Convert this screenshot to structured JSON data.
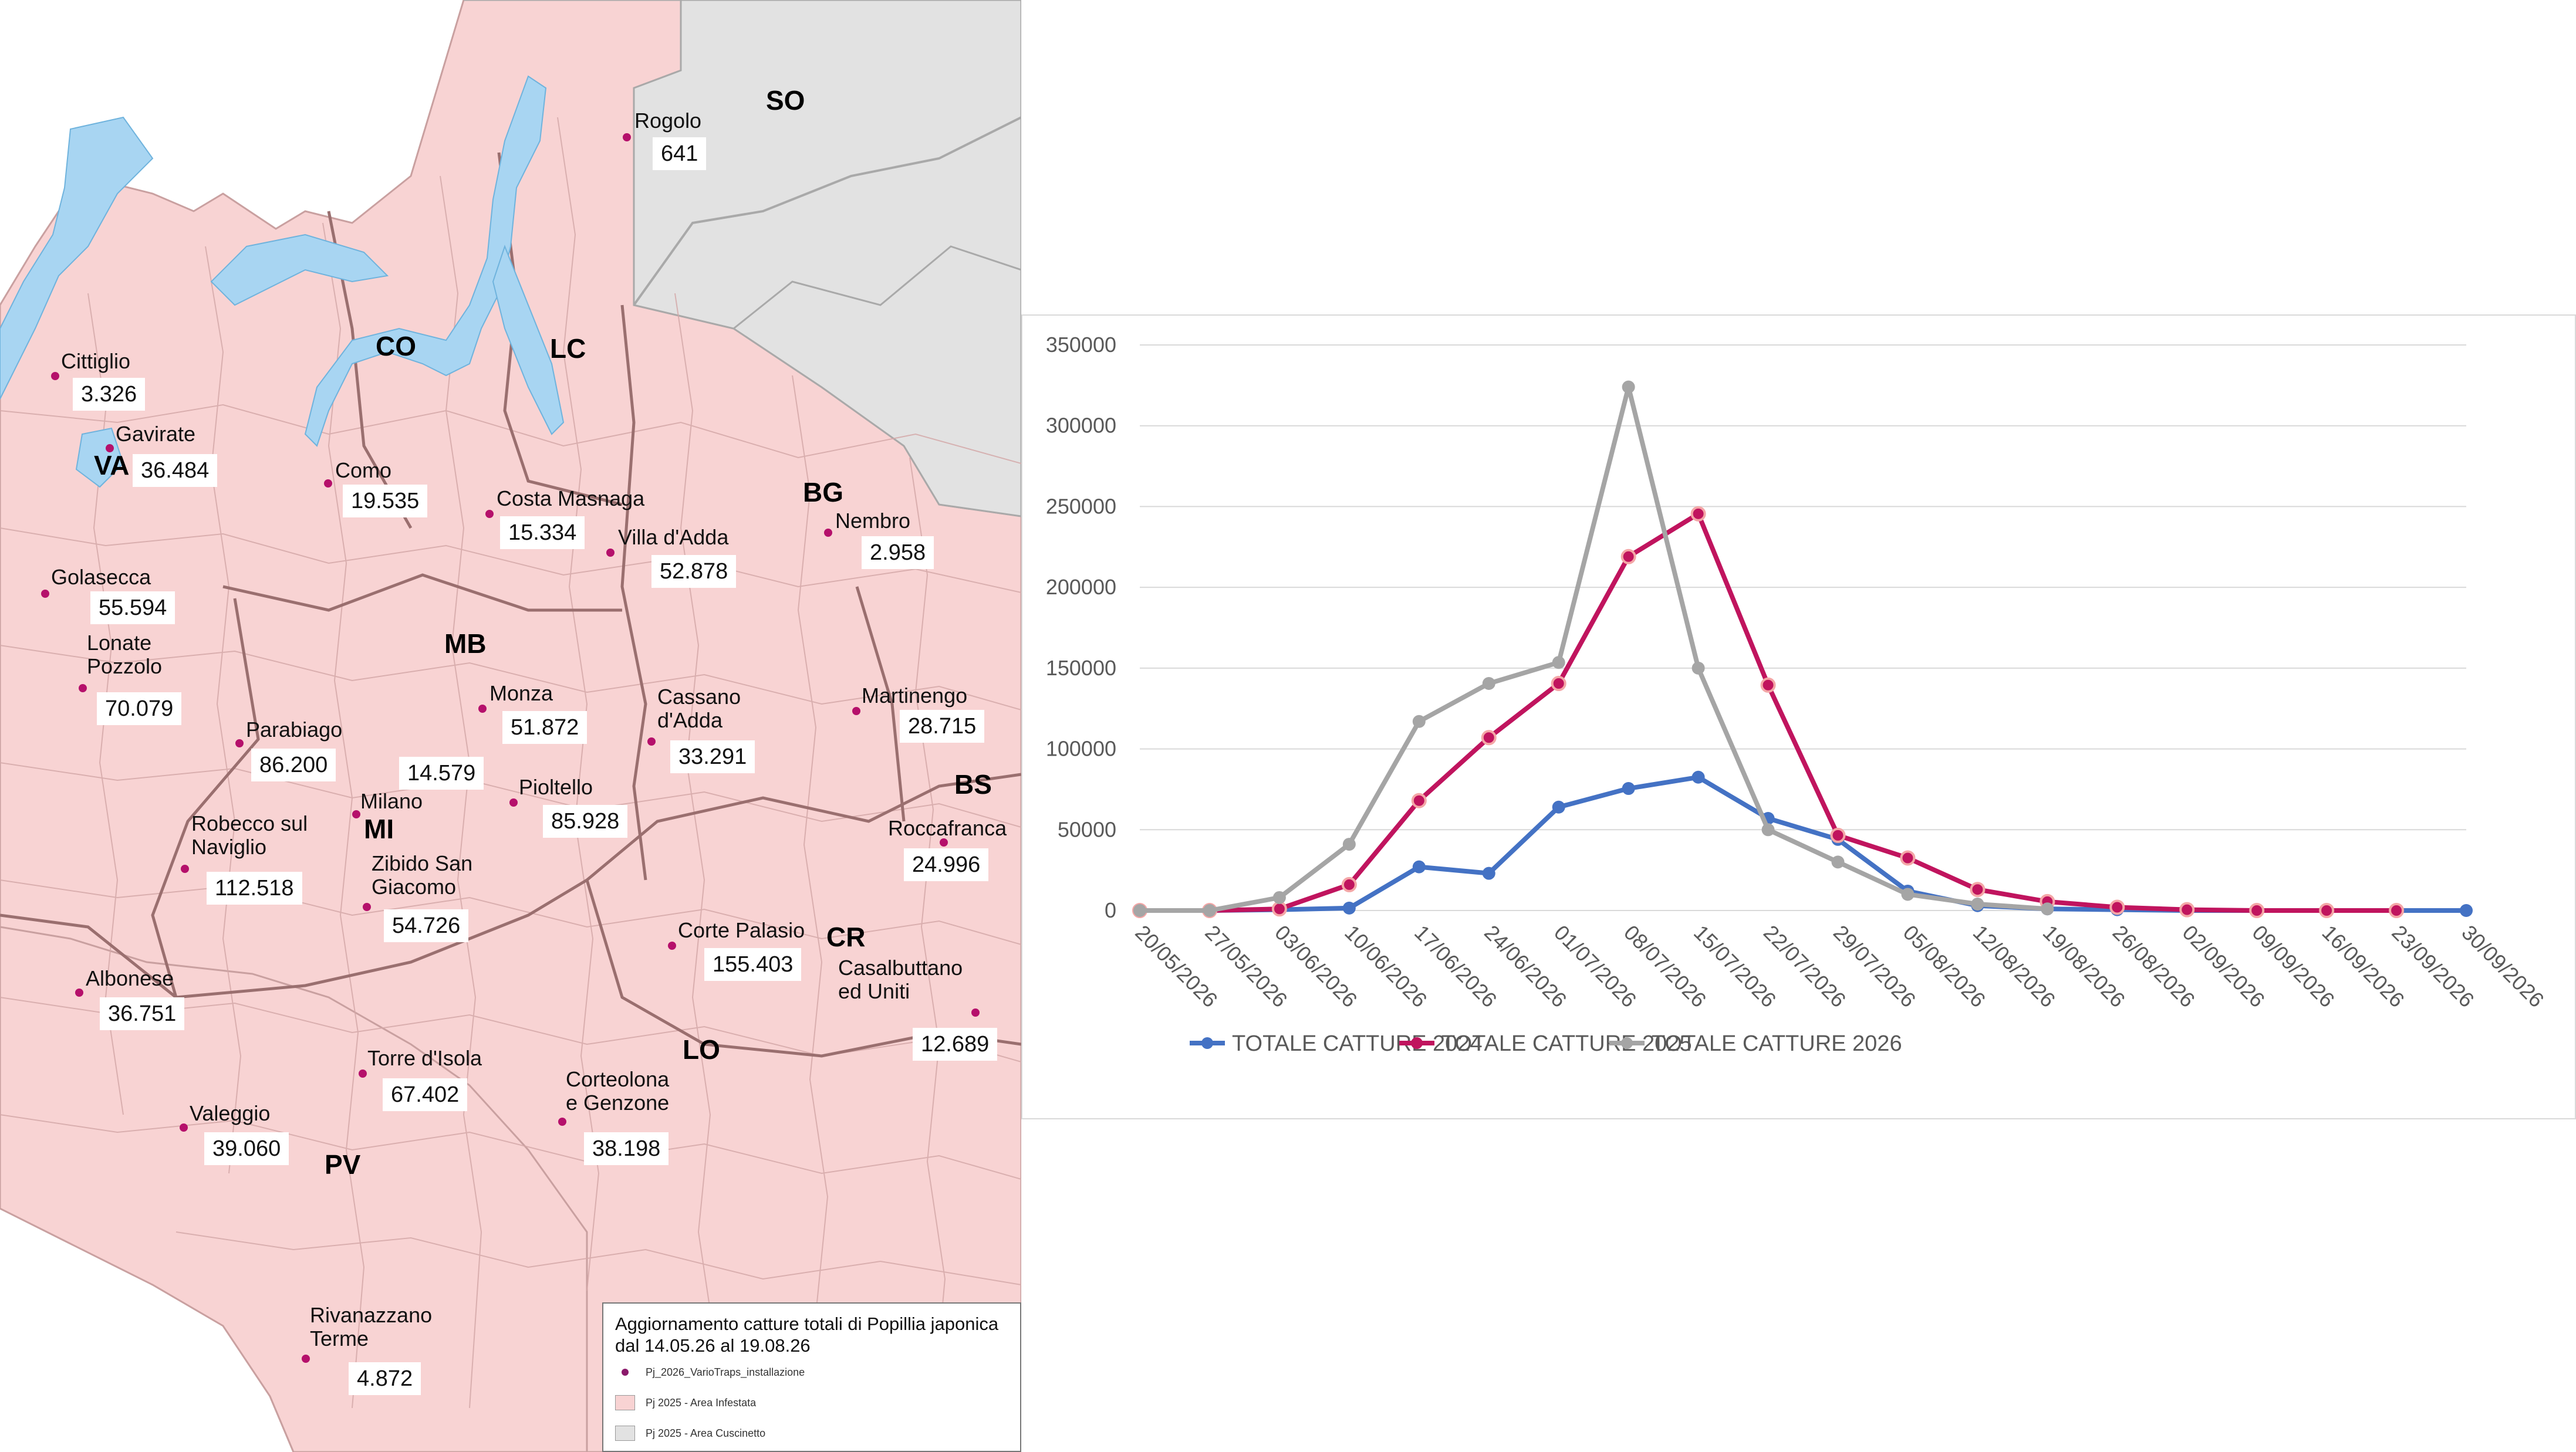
{
  "map": {
    "provinces": [
      {
        "code": "SO"
      },
      {
        "code": "CO"
      },
      {
        "code": "LC"
      },
      {
        "code": "VA"
      },
      {
        "code": "BG"
      },
      {
        "code": "MB"
      },
      {
        "code": "MI"
      },
      {
        "code": "BS"
      },
      {
        "code": "CR"
      },
      {
        "code": "LO"
      },
      {
        "code": "PV"
      }
    ],
    "locations": [
      {
        "name": "Rogolo",
        "count": "641"
      },
      {
        "name": "Cittiglio",
        "count": "3.326"
      },
      {
        "name": "Gavirate",
        "count": "36.484"
      },
      {
        "name": "Como",
        "count": "19.535"
      },
      {
        "name": "Costa Masnaga",
        "count": "15.334"
      },
      {
        "name": "Villa d'Adda",
        "count": "52.878"
      },
      {
        "name": "Nembro",
        "count": "2.958"
      },
      {
        "name": "Golasecca",
        "count": "55.594"
      },
      {
        "name": "Lonate Pozzolo",
        "count": "70.079"
      },
      {
        "name": "Monza",
        "count": "51.872"
      },
      {
        "name": "Cassano d'Adda",
        "count": "33.291"
      },
      {
        "name": "Martinengo",
        "count": "28.715"
      },
      {
        "name": "Parabiago",
        "count": "86.200"
      },
      {
        "name": "Milano",
        "count": "14.579"
      },
      {
        "name": "Pioltello",
        "count": "85.928"
      },
      {
        "name": "Roccafranca",
        "count": "24.996"
      },
      {
        "name": "Robecco sul Naviglio",
        "count": "112.518"
      },
      {
        "name": "Zibido San Giacomo",
        "count": "54.726"
      },
      {
        "name": "Corte Palasio",
        "count": "155.403"
      },
      {
        "name": "Casalbuttano ed Uniti",
        "count": "12.689"
      },
      {
        "name": "Albonese",
        "count": "36.751"
      },
      {
        "name": "Torre d'Isola",
        "count": "67.402"
      },
      {
        "name": "Corteolona e Genzone",
        "count": "38.198"
      },
      {
        "name": "Valeggio",
        "count": "39.060"
      },
      {
        "name": "Rivanazzano Terme",
        "count": "4.872"
      }
    ],
    "legend": {
      "title": "Aggiornamento catture totali di Popillia japonica dal 14.05.26 al 19.08.26",
      "items": [
        {
          "label": "Pj_2026_VarioTraps_installazione",
          "kind": "dot",
          "color": "#8B1A6B"
        },
        {
          "label": "Pj 2025 - Area Infestata",
          "kind": "swatch",
          "color": "#F8D3D3"
        },
        {
          "label": "Pj 2025 - Area Cuscinetto",
          "kind": "swatch",
          "color": "#E2E2E2"
        }
      ]
    },
    "colors": {
      "infested": "#F8D3D3",
      "buffer": "#E2E2E2",
      "water": "#A8D5F2",
      "border": "#C9A0A0",
      "trap": "#B5106B"
    }
  },
  "chart_data": {
    "type": "line",
    "categories": [
      "20/05/2026",
      "27/05/2026",
      "03/06/2026",
      "10/06/2026",
      "17/06/2026",
      "24/06/2026",
      "01/07/2026",
      "08/07/2026",
      "15/07/2026",
      "22/07/2026",
      "29/07/2026",
      "05/08/2026",
      "12/08/2026",
      "19/08/2026",
      "26/08/2026",
      "02/09/2026",
      "09/09/2026",
      "16/09/2026",
      "23/09/2026",
      "30/09/2026"
    ],
    "ylim": [
      0,
      350000
    ],
    "yticks": [
      "0",
      "50000",
      "100000",
      "150000",
      "200000",
      "250000",
      "300000",
      "350000"
    ],
    "grid": true,
    "legend_position": "bottom",
    "series": [
      {
        "name": "TOTALE CATTURE 2024",
        "color": "#4472C4",
        "values": [
          0,
          0,
          500,
          1500,
          27000,
          23000,
          64000,
          75500,
          82500,
          57000,
          44000,
          12000,
          3000,
          1000,
          500,
          0,
          0,
          0,
          0,
          0
        ]
      },
      {
        "name": "TOTALE CATTURE 2025",
        "color": "#C0145E",
        "values": [
          0,
          0,
          1000,
          16000,
          68000,
          107000,
          140500,
          219000,
          245500,
          139500,
          46500,
          32500,
          13000,
          5500,
          2000,
          500,
          0,
          0,
          0,
          null
        ]
      },
      {
        "name": "TOTALE CATTURE 2026",
        "color": "#A5A5A5",
        "values": [
          0,
          0,
          8000,
          41000,
          117000,
          140500,
          153500,
          324000,
          150000,
          50000,
          30000,
          10000,
          4000,
          1000,
          null,
          null,
          null,
          null,
          null,
          null
        ]
      }
    ]
  }
}
